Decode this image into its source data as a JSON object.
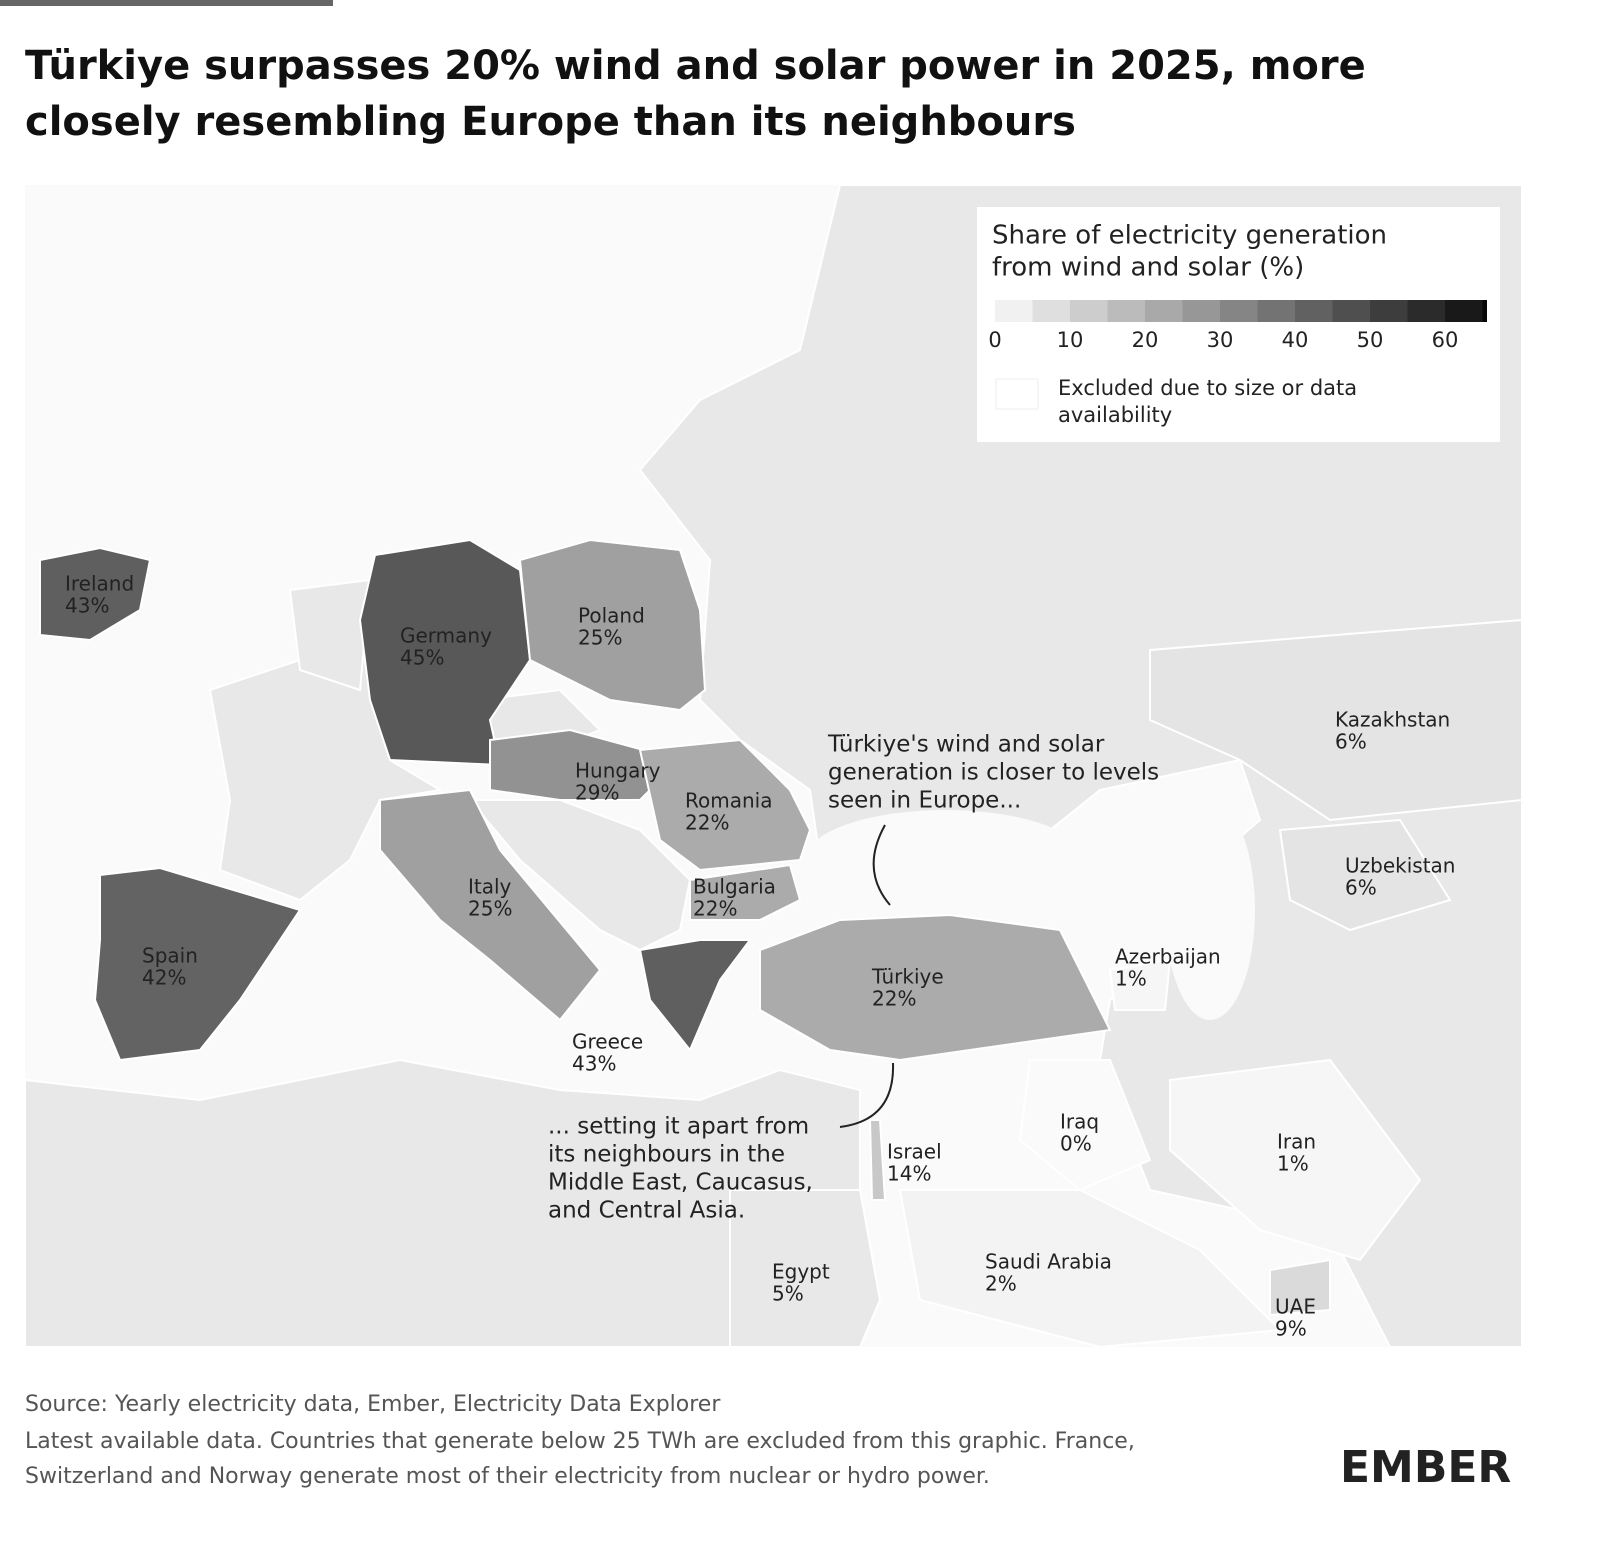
{
  "title": "Türkiye surpasses 20% wind and solar power in 2025, more closely resembling Europe than its neighbours",
  "legend": {
    "title_lines": [
      "Share of electricity generation",
      "from wind and solar (%)"
    ],
    "ticks": [
      0,
      10,
      20,
      30,
      40,
      50,
      60
    ],
    "excluded_lines": [
      "Excluded due to size or data",
      "availability"
    ]
  },
  "countries": [
    {
      "name": "Ireland",
      "value": 43,
      "label": "43%"
    },
    {
      "name": "Germany",
      "value": 45,
      "label": "45%"
    },
    {
      "name": "Poland",
      "value": 25,
      "label": "25%"
    },
    {
      "name": "Hungary",
      "value": 29,
      "label": "29%"
    },
    {
      "name": "Romania",
      "value": 22,
      "label": "22%"
    },
    {
      "name": "Italy",
      "value": 25,
      "label": "25%"
    },
    {
      "name": "Bulgaria",
      "value": 22,
      "label": "22%"
    },
    {
      "name": "Spain",
      "value": 42,
      "label": "42%"
    },
    {
      "name": "Greece",
      "value": 43,
      "label": "43%"
    },
    {
      "name": "Türkiye",
      "value": 22,
      "label": "22%"
    },
    {
      "name": "Kazakhstan",
      "value": 6,
      "label": "6%"
    },
    {
      "name": "Uzbekistan",
      "value": 6,
      "label": "6%"
    },
    {
      "name": "Azerbaijan",
      "value": 1,
      "label": "1%"
    },
    {
      "name": "Iraq",
      "value": 0,
      "label": "0%"
    },
    {
      "name": "Iran",
      "value": 1,
      "label": "1%"
    },
    {
      "name": "Israel",
      "value": 14,
      "label": "14%"
    },
    {
      "name": "Saudi Arabia",
      "value": 2,
      "label": "2%"
    },
    {
      "name": "Egypt",
      "value": 5,
      "label": "5%"
    },
    {
      "name": "UAE",
      "value": 9,
      "label": "9%"
    }
  ],
  "annotations": [
    {
      "lines": [
        "Türkiye's wind and solar",
        "generation is closer to levels",
        "seen in Europe..."
      ]
    },
    {
      "lines": [
        "... setting it apart from",
        "its neighbours in the",
        "Middle East, Caucasus,",
        "and Central Asia."
      ]
    }
  ],
  "source": "Source: Yearly electricity data, Ember, Electricity Data Explorer",
  "note_lines": [
    "Latest available data. Countries that generate below 25 TWh are excluded from this graphic. France,",
    "Switzerland and Norway generate most of their electricity from nuclear or hydro power."
  ],
  "logo": "EMBER"
}
